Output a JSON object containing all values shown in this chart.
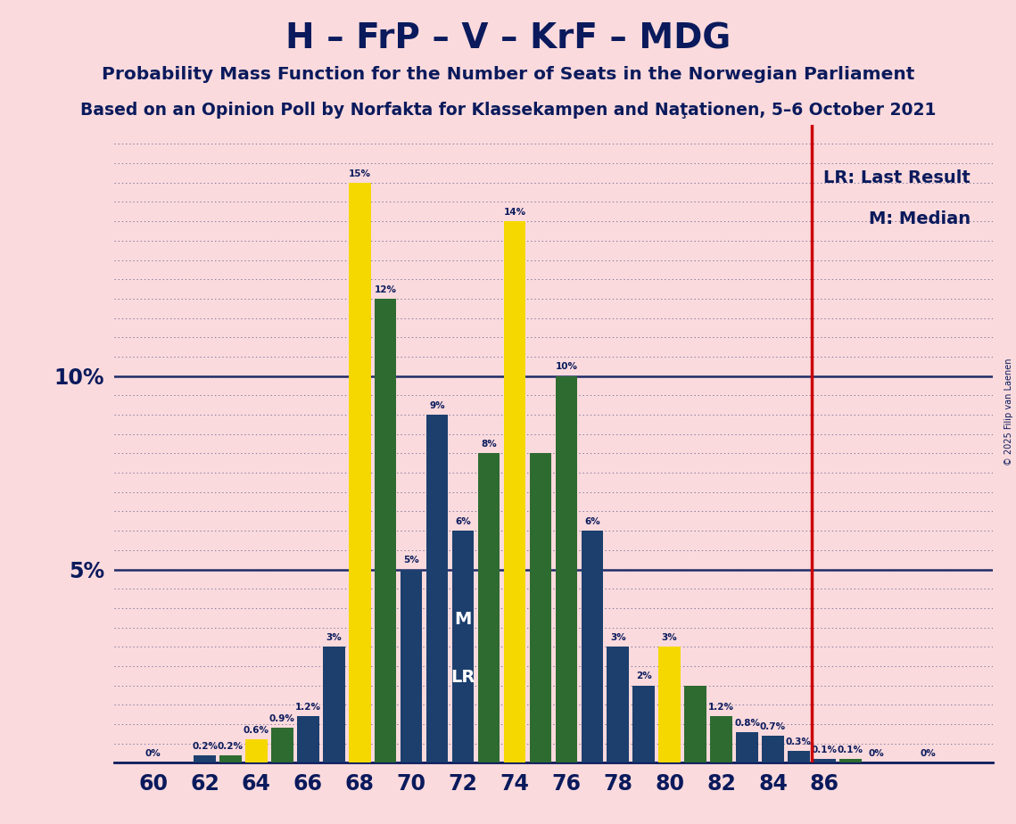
{
  "title": "H – FrP – V – KrF – MDG",
  "subtitle1": "Probability Mass Function for the Number of Seats in the Norwegian Parliament",
  "subtitle2": "Based on an Opinion Poll by Norfakta for Klassekampen and Naţationen, 5–6 October 2021",
  "copyright": "© 2025 Filip van Laenen",
  "lr_label": "LR: Last Result",
  "m_label": "M: Median",
  "background_color": "#fadadd",
  "c_yellow": "#f5d800",
  "c_green": "#2e6b30",
  "c_blue": "#1c3f6e",
  "c_red": "#cc0000",
  "text_color": "#0a1a5c",
  "bars": [
    {
      "x": 60,
      "color": "blue",
      "val": 0.0,
      "label": "0%"
    },
    {
      "x": 62,
      "color": "blue",
      "val": 0.2,
      "label": "0.2%"
    },
    {
      "x": 63,
      "color": "green",
      "val": 0.2,
      "label": "0.2%"
    },
    {
      "x": 64,
      "color": "yellow",
      "val": 0.6,
      "label": "0.6%"
    },
    {
      "x": 65,
      "color": "green",
      "val": 0.9,
      "label": "0.9%"
    },
    {
      "x": 66,
      "color": "blue",
      "val": 1.2,
      "label": "1.2%"
    },
    {
      "x": 67,
      "color": "blue",
      "val": 3.0,
      "label": "3%"
    },
    {
      "x": 68,
      "color": "yellow",
      "val": 15.0,
      "label": "15%"
    },
    {
      "x": 69,
      "color": "green",
      "val": 12.0,
      "label": "12%"
    },
    {
      "x": 70,
      "color": "blue",
      "val": 5.0,
      "label": "5%"
    },
    {
      "x": 71,
      "color": "blue",
      "val": 9.0,
      "label": "9%"
    },
    {
      "x": 72,
      "color": "blue",
      "val": 6.0,
      "label": "6%"
    },
    {
      "x": 73,
      "color": "green",
      "val": 8.0,
      "label": "8%"
    },
    {
      "x": 74,
      "color": "yellow",
      "val": 14.0,
      "label": "14%"
    },
    {
      "x": 75,
      "color": "green",
      "val": 8.0,
      "label": ""
    },
    {
      "x": 76,
      "color": "green",
      "val": 10.0,
      "label": "10%"
    },
    {
      "x": 77,
      "color": "blue",
      "val": 6.0,
      "label": "6%"
    },
    {
      "x": 78,
      "color": "blue",
      "val": 3.0,
      "label": "3%"
    },
    {
      "x": 79,
      "color": "blue",
      "val": 2.0,
      "label": "2%"
    },
    {
      "x": 80,
      "color": "yellow",
      "val": 3.0,
      "label": "3%"
    },
    {
      "x": 81,
      "color": "green",
      "val": 2.0,
      "label": ""
    },
    {
      "x": 82,
      "color": "green",
      "val": 1.2,
      "label": "1.2%"
    },
    {
      "x": 83,
      "color": "blue",
      "val": 0.8,
      "label": "0.8%"
    },
    {
      "x": 84,
      "color": "blue",
      "val": 0.7,
      "label": "0.7%"
    },
    {
      "x": 85,
      "color": "blue",
      "val": 0.3,
      "label": "0.3%"
    },
    {
      "x": 86,
      "color": "blue",
      "val": 0.1,
      "label": "0.1%"
    },
    {
      "x": 87,
      "color": "green",
      "val": 0.1,
      "label": "0.1%"
    },
    {
      "x": 88,
      "color": "blue",
      "val": 0.0,
      "label": "0%"
    },
    {
      "x": 90,
      "color": "blue",
      "val": 0.0,
      "label": "0%"
    }
  ],
  "lr_seat": 85.5,
  "median_x": 72.0,
  "median_y_m": 4.5,
  "median_y_lr": 3.2,
  "ylim": [
    0,
    16.5
  ],
  "xlim": [
    58.5,
    92.5
  ],
  "xticks": [
    60,
    62,
    64,
    66,
    68,
    70,
    72,
    74,
    76,
    78,
    80,
    82,
    84,
    86,
    88,
    90
  ],
  "xtick_labels": [
    "60",
    "62",
    "64",
    "66",
    "68",
    "70",
    "72",
    "74",
    "76",
    "78",
    "80",
    "82",
    "84",
    "86",
    "",
    ""
  ]
}
